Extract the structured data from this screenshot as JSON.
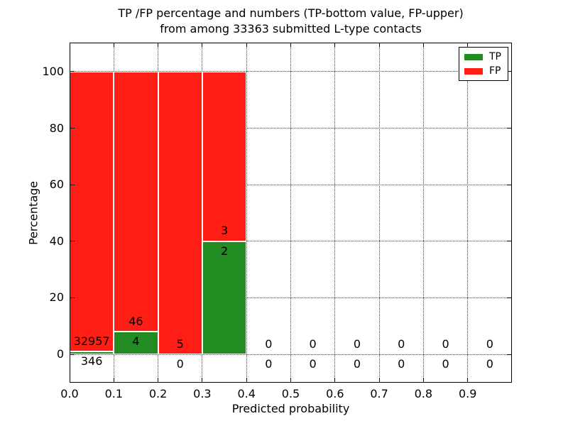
{
  "figure": {
    "title_line1": "TP /FP percentage and numbers (TP-bottom value, FP-upper)",
    "title_line2": "from among 33363 submitted L-type contacts",
    "xlabel": "Predicted probability",
    "ylabel": "Percentage"
  },
  "legend": {
    "position": "upper-right",
    "entries": [
      {
        "label": "TP",
        "color": "#228b22"
      },
      {
        "label": "FP",
        "color": "#ff1e15"
      }
    ]
  },
  "chart_data": {
    "type": "bar",
    "stacked": true,
    "title": "TP /FP percentage and numbers (TP-bottom value, FP-upper) from among 33363 submitted L-type contacts",
    "xlabel": "Predicted probability",
    "ylabel": "Percentage",
    "total_contacts": 33363,
    "xlim": [
      0,
      1
    ],
    "ylim": [
      -10.05,
      110.3
    ],
    "grid": "dotted",
    "legend_position": "upper-right",
    "x_tick_values": [
      0.0,
      0.1,
      0.2,
      0.3,
      0.4,
      0.5,
      0.6,
      0.7,
      0.8,
      0.9
    ],
    "x_tick_labels": [
      "0.0",
      "0.1",
      "0.2",
      "0.3",
      "0.4",
      "0.5",
      "0.6",
      "0.7",
      "0.8",
      "0.9"
    ],
    "y_tick_values": [
      0,
      20,
      40,
      60,
      80,
      100
    ],
    "y_tick_labels": [
      "0",
      "20",
      "40",
      "60",
      "80",
      "100"
    ],
    "colors": {
      "tp": "#228b22",
      "fp": "#ff1e15",
      "bar_edge": "#ffffff"
    },
    "label_offset_pct": 3.6,
    "series": [
      {
        "name": "TP",
        "color": "#228b22",
        "values_pct": [
          1.04,
          8.0,
          0.0,
          40.0,
          0,
          0,
          0,
          0,
          0,
          0
        ]
      },
      {
        "name": "FP",
        "color": "#ff1e15",
        "values_pct": [
          98.96,
          92.0,
          100.0,
          60.0,
          0,
          0,
          0,
          0,
          0,
          0
        ]
      }
    ],
    "bins": [
      {
        "range": [
          0.0,
          0.1
        ],
        "tp_count": 346,
        "fp_count": 32957,
        "tp_pct": 1.04,
        "fp_pct": 98.96
      },
      {
        "range": [
          0.1,
          0.2
        ],
        "tp_count": 4,
        "fp_count": 46,
        "tp_pct": 8.0,
        "fp_pct": 92.0
      },
      {
        "range": [
          0.2,
          0.3
        ],
        "tp_count": 0,
        "fp_count": 5,
        "tp_pct": 0.0,
        "fp_pct": 100.0
      },
      {
        "range": [
          0.3,
          0.4
        ],
        "tp_count": 2,
        "fp_count": 3,
        "tp_pct": 40.0,
        "fp_pct": 60.0
      },
      {
        "range": [
          0.4,
          0.5
        ],
        "tp_count": 0,
        "fp_count": 0,
        "tp_pct": 0,
        "fp_pct": 0
      },
      {
        "range": [
          0.5,
          0.6
        ],
        "tp_count": 0,
        "fp_count": 0,
        "tp_pct": 0,
        "fp_pct": 0
      },
      {
        "range": [
          0.6,
          0.7
        ],
        "tp_count": 0,
        "fp_count": 0,
        "tp_pct": 0,
        "fp_pct": 0
      },
      {
        "range": [
          0.7,
          0.8
        ],
        "tp_count": 0,
        "fp_count": 0,
        "tp_pct": 0,
        "fp_pct": 0
      },
      {
        "range": [
          0.8,
          0.9
        ],
        "tp_count": 0,
        "fp_count": 0,
        "tp_pct": 0,
        "fp_pct": 0
      },
      {
        "range": [
          0.9,
          1.0
        ],
        "tp_count": 0,
        "fp_count": 0,
        "tp_pct": 0,
        "fp_pct": 0
      }
    ]
  }
}
